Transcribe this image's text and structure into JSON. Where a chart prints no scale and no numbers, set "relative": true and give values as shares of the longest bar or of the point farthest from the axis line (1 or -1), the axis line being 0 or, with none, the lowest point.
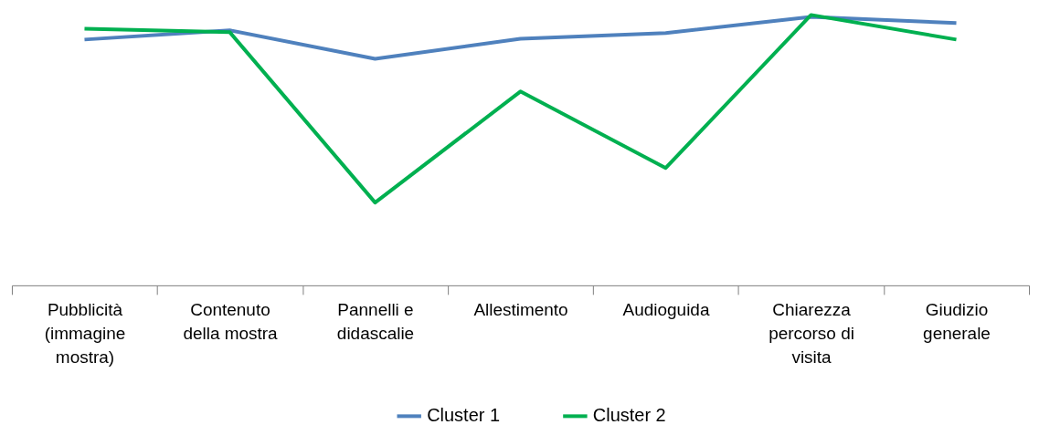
{
  "chart_data": {
    "type": "line",
    "relative": true,
    "categories": [
      "Pubblicità (immagine mostra)",
      "Contenuto della mostra",
      "Pannelli e didascalie",
      "Allestimento",
      "Audioguida",
      "Chiarezza percorso di visita",
      "Giudizio generale"
    ],
    "series": [
      {
        "name": "Cluster 1",
        "color": "#4f81bd",
        "values": [
          0.909,
          0.943,
          0.838,
          0.912,
          0.933,
          0.993,
          0.97
        ]
      },
      {
        "name": "Cluster 2",
        "color": "#00b050",
        "values": [
          0.949,
          0.936,
          0.306,
          0.717,
          0.434,
          1.0,
          0.909
        ]
      }
    ],
    "legend": "bottom",
    "grid": false,
    "marker": "none",
    "line_style": "solid"
  }
}
